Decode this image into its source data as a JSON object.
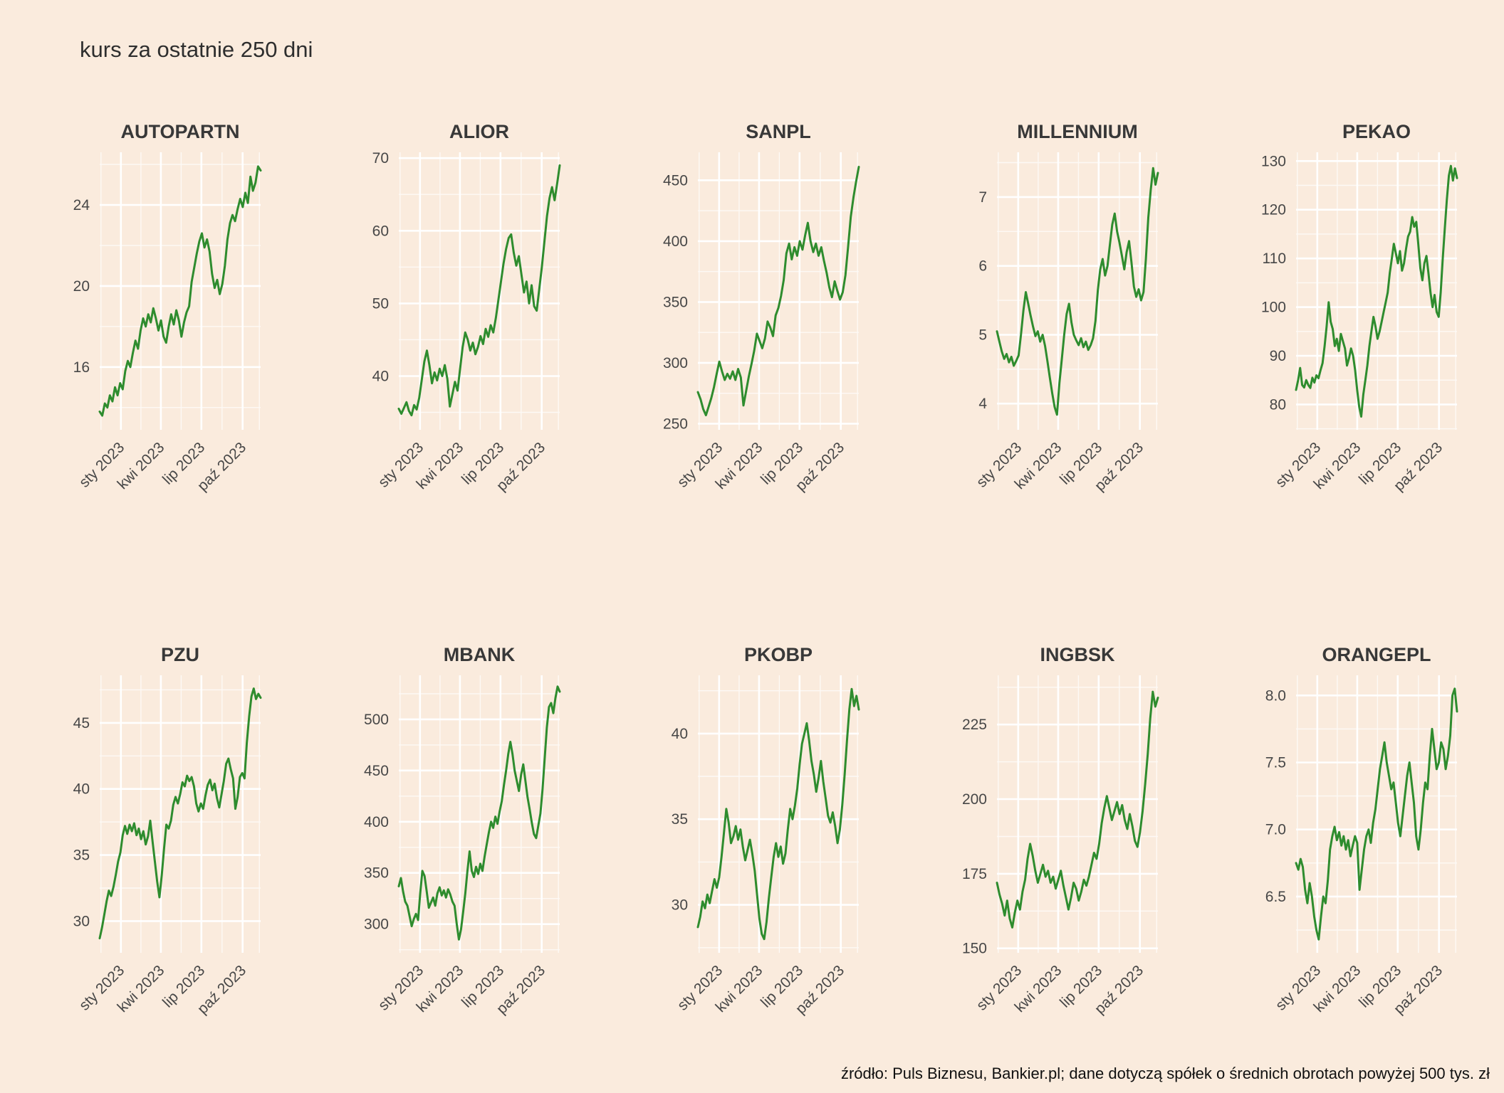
{
  "page": {
    "title": "kurs za ostatnie 250 dni",
    "footer": "źródło: Puls Biznesu, Bankier.pl; dane dotyczą spółek o średnich obrotach powyżej 500 tys. zł",
    "background_color": "#faebdd",
    "line_color": "#2e8c2e",
    "grid_color": "#ffffff",
    "tick_label_color": "#474747",
    "panel_title_color": "#383838"
  },
  "chart_data": [
    {
      "type": "line",
      "title": "AUTOPARTN",
      "x_tick_labels": [
        "sty 2023",
        "kwi 2023",
        "lip 2023",
        "paź 2023"
      ],
      "x_tick_pos": [
        0.132,
        0.38,
        0.632,
        0.888
      ],
      "y_ticks": [
        16,
        20,
        24
      ],
      "y_tick_labels": [
        "16",
        "20",
        "24"
      ],
      "y_range": [
        12.9,
        26.6
      ],
      "values": [
        13.8,
        13.6,
        14.2,
        14.0,
        14.6,
        14.3,
        15.0,
        14.6,
        15.2,
        14.9,
        15.8,
        16.3,
        16.0,
        16.7,
        17.3,
        16.9,
        17.8,
        18.4,
        18.0,
        18.6,
        18.2,
        18.9,
        18.4,
        17.8,
        18.3,
        17.5,
        17.2,
        18.0,
        18.6,
        18.1,
        18.8,
        18.3,
        17.5,
        18.2,
        18.7,
        19.0,
        20.2,
        20.9,
        21.6,
        22.2,
        22.6,
        21.9,
        22.3,
        21.7,
        20.6,
        19.9,
        20.3,
        19.6,
        20.1,
        21.0,
        22.3,
        23.1,
        23.5,
        23.2,
        23.8,
        24.3,
        23.9,
        24.6,
        24.1,
        25.4,
        24.7,
        25.1,
        25.9,
        25.7
      ]
    },
    {
      "type": "line",
      "title": "ALIOR",
      "x_tick_labels": [
        "sty 2023",
        "kwi 2023",
        "lip 2023",
        "paź 2023"
      ],
      "x_tick_pos": [
        0.132,
        0.38,
        0.632,
        0.888
      ],
      "y_ticks": [
        40,
        50,
        60,
        70
      ],
      "y_tick_labels": [
        "40",
        "50",
        "60",
        "70"
      ],
      "y_range": [
        32.6,
        70.8
      ],
      "values": [
        35.5,
        34.8,
        35.6,
        36.4,
        35.2,
        34.6,
        36.0,
        35.4,
        37.0,
        39.5,
        42.0,
        43.5,
        41.5,
        39.0,
        40.5,
        39.4,
        41.0,
        40.0,
        41.5,
        39.6,
        35.8,
        37.5,
        39.2,
        38.0,
        41.0,
        44.0,
        46.0,
        45.0,
        43.5,
        44.6,
        43.0,
        44.0,
        45.5,
        44.4,
        46.5,
        45.4,
        47.0,
        46.0,
        48.0,
        50.5,
        53.0,
        55.5,
        57.5,
        59.0,
        59.5,
        57.0,
        55.2,
        56.5,
        54.0,
        51.5,
        53.0,
        50.0,
        52.5,
        49.6,
        49.0,
        52.0,
        55.0,
        58.5,
        62.0,
        64.5,
        66.0,
        64.2,
        66.5,
        69.0
      ]
    },
    {
      "type": "line",
      "title": "SANPL",
      "x_tick_labels": [
        "sty 2023",
        "kwi 2023",
        "lip 2023",
        "paź 2023"
      ],
      "x_tick_pos": [
        0.132,
        0.38,
        0.632,
        0.888
      ],
      "y_ticks": [
        250,
        300,
        350,
        400,
        450
      ],
      "y_tick_labels": [
        "250",
        "300",
        "350",
        "400",
        "450"
      ],
      "y_range": [
        245,
        473
      ],
      "values": [
        276,
        270,
        262,
        257,
        264,
        271,
        280,
        291,
        301,
        293,
        286,
        291,
        287,
        293,
        286,
        295,
        288,
        265,
        277,
        289,
        299,
        310,
        324,
        318,
        312,
        320,
        334,
        329,
        322,
        339,
        345,
        355,
        368,
        390,
        398,
        385,
        395,
        388,
        400,
        393,
        405,
        415,
        400,
        391,
        398,
        388,
        395,
        384,
        374,
        362,
        354,
        367,
        359,
        352,
        358,
        372,
        395,
        420,
        436,
        449,
        461
      ]
    },
    {
      "type": "line",
      "title": "MILLENNIUM",
      "x_tick_labels": [
        "sty 2023",
        "kwi 2023",
        "lip 2023",
        "paź 2023"
      ],
      "x_tick_pos": [
        0.132,
        0.38,
        0.632,
        0.888
      ],
      "y_ticks": [
        4,
        5,
        6,
        7
      ],
      "y_tick_labels": [
        "4",
        "5",
        "6",
        "7"
      ],
      "y_range": [
        3.62,
        7.65
      ],
      "values": [
        5.05,
        4.9,
        4.76,
        4.65,
        4.72,
        4.6,
        4.68,
        4.55,
        4.62,
        4.7,
        5.0,
        5.35,
        5.62,
        5.45,
        5.28,
        5.12,
        4.98,
        5.05,
        4.9,
        5.0,
        4.84,
        4.62,
        4.38,
        4.15,
        3.95,
        3.84,
        4.3,
        4.65,
        5.0,
        5.3,
        5.45,
        5.18,
        5.0,
        4.92,
        4.85,
        4.95,
        4.82,
        4.9,
        4.78,
        4.85,
        4.95,
        5.2,
        5.65,
        5.95,
        6.1,
        5.86,
        6.0,
        6.3,
        6.6,
        6.76,
        6.5,
        6.34,
        6.15,
        5.95,
        6.2,
        6.36,
        6.05,
        5.7,
        5.55,
        5.66,
        5.5,
        5.62,
        6.1,
        6.7,
        7.1,
        7.42,
        7.18,
        7.35
      ]
    },
    {
      "type": "line",
      "title": "PEKAO",
      "x_tick_labels": [
        "sty 2023",
        "kwi 2023",
        "lip 2023",
        "paź 2023"
      ],
      "x_tick_pos": [
        0.132,
        0.38,
        0.632,
        0.888
      ],
      "y_ticks": [
        80,
        90,
        100,
        110,
        120,
        130
      ],
      "y_tick_labels": [
        "80",
        "90",
        "100",
        "110",
        "120",
        "130"
      ],
      "y_range": [
        74.8,
        131.8
      ],
      "values": [
        83,
        85,
        87.5,
        84,
        83.5,
        85,
        84,
        83.4,
        85.5,
        84.5,
        86,
        85.4,
        87,
        88.5,
        92,
        96,
        101,
        97,
        95.5,
        92,
        93.5,
        91,
        94.5,
        93,
        91.5,
        88,
        89.5,
        91.5,
        90,
        87,
        83,
        79.5,
        77.5,
        82,
        85,
        88,
        92,
        95,
        98,
        96,
        93.5,
        95,
        97,
        99,
        101,
        103,
        107,
        110,
        113,
        111,
        109,
        111.5,
        107.5,
        109,
        112,
        114.5,
        115.5,
        118.5,
        116.5,
        117.5,
        113,
        108,
        105.5,
        109,
        110.5,
        107,
        103,
        100,
        102.5,
        99,
        98,
        103,
        110,
        116,
        122,
        127,
        129,
        126,
        128.5,
        126.5
      ]
    },
    {
      "type": "line",
      "title": "PZU",
      "x_tick_labels": [
        "sty 2023",
        "kwi 2023",
        "lip 2023",
        "paź 2023"
      ],
      "x_tick_pos": [
        0.132,
        0.38,
        0.632,
        0.888
      ],
      "y_ticks": [
        30,
        35,
        40,
        45
      ],
      "y_tick_labels": [
        "30",
        "35",
        "40",
        "45"
      ],
      "y_range": [
        27.6,
        48.6
      ],
      "values": [
        28.7,
        29.5,
        30.5,
        31.5,
        32.3,
        31.9,
        32.6,
        33.5,
        34.5,
        35.2,
        36.5,
        37.2,
        36.6,
        37.3,
        36.8,
        37.4,
        36.5,
        37.0,
        36.2,
        36.8,
        35.8,
        36.4,
        37.6,
        36.0,
        34.5,
        33.0,
        31.8,
        33.5,
        35.5,
        37.3,
        37.0,
        37.6,
        38.8,
        39.4,
        38.9,
        39.6,
        40.5,
        40.2,
        41.0,
        40.6,
        40.9,
        40.2,
        38.9,
        38.3,
        38.9,
        38.5,
        39.5,
        40.3,
        40.7,
        39.9,
        40.4,
        39.3,
        38.6,
        39.6,
        40.6,
        41.9,
        42.3,
        41.5,
        40.8,
        38.5,
        39.4,
        40.9,
        41.2,
        40.8,
        43.5,
        45.5,
        47.0,
        47.6,
        46.8,
        47.2,
        46.9
      ]
    },
    {
      "type": "line",
      "title": "MBANK",
      "x_tick_labels": [
        "sty 2023",
        "kwi 2023",
        "lip 2023",
        "paź 2023"
      ],
      "x_tick_pos": [
        0.132,
        0.38,
        0.632,
        0.888
      ],
      "y_ticks": [
        300,
        350,
        400,
        450,
        500
      ],
      "y_tick_labels": [
        "300",
        "350",
        "400",
        "450",
        "500"
      ],
      "y_range": [
        272,
        543
      ],
      "values": [
        337,
        345,
        332,
        322,
        318,
        308,
        298,
        305,
        310,
        304,
        330,
        352,
        347,
        332,
        316,
        321,
        326,
        318,
        330,
        336,
        328,
        333,
        326,
        334,
        329,
        322,
        318,
        300,
        285,
        295,
        312,
        330,
        352,
        371,
        352,
        346,
        356,
        349,
        359,
        352,
        366,
        378,
        390,
        400,
        394,
        405,
        398,
        410,
        420,
        436,
        450,
        466,
        478,
        466,
        450,
        440,
        430,
        446,
        456,
        440,
        424,
        412,
        399,
        388,
        384,
        396,
        408,
        432,
        462,
        492,
        512,
        516,
        506,
        521,
        532,
        527
      ]
    },
    {
      "type": "line",
      "title": "PKOBP",
      "x_tick_labels": [
        "sty 2023",
        "kwi 2023",
        "lip 2023",
        "paź 2023"
      ],
      "x_tick_pos": [
        0.132,
        0.38,
        0.632,
        0.888
      ],
      "y_ticks": [
        30,
        35,
        40
      ],
      "y_tick_labels": [
        "30",
        "35",
        "40"
      ],
      "y_range": [
        27.2,
        43.4
      ],
      "values": [
        28.7,
        29.3,
        30.2,
        29.8,
        30.6,
        30.1,
        30.8,
        31.5,
        31.0,
        31.6,
        32.8,
        34.2,
        35.6,
        34.8,
        33.6,
        34.0,
        34.6,
        33.8,
        34.4,
        33.4,
        32.6,
        33.2,
        33.8,
        33.0,
        32.0,
        30.6,
        29.2,
        28.3,
        28.0,
        29.0,
        30.4,
        31.6,
        32.8,
        33.6,
        32.8,
        33.4,
        32.4,
        33.0,
        34.4,
        35.6,
        35.0,
        35.8,
        36.8,
        38.2,
        39.4,
        40.0,
        40.6,
        39.6,
        38.4,
        37.6,
        36.6,
        37.4,
        38.4,
        37.2,
        36.2,
        35.2,
        34.8,
        35.4,
        34.6,
        33.6,
        34.4,
        35.8,
        37.6,
        39.6,
        41.4,
        42.6,
        41.6,
        42.2,
        41.4
      ]
    },
    {
      "type": "line",
      "title": "INGBSK",
      "x_tick_labels": [
        "sty 2023",
        "kwi 2023",
        "lip 2023",
        "paź 2023"
      ],
      "x_tick_pos": [
        0.132,
        0.38,
        0.632,
        0.888
      ],
      "y_ticks": [
        150,
        175,
        200,
        225
      ],
      "y_tick_labels": [
        "150",
        "175",
        "200",
        "225"
      ],
      "y_range": [
        148.5,
        241.5
      ],
      "values": [
        172,
        168,
        165,
        161,
        166,
        160,
        157,
        162,
        166,
        163,
        169,
        173,
        180,
        185,
        181,
        176,
        172,
        175,
        178,
        174,
        176,
        172,
        174,
        170,
        173,
        176,
        171,
        167,
        163,
        167,
        172,
        170,
        166,
        169,
        173,
        171,
        174,
        178,
        182,
        180,
        185,
        192,
        197,
        201,
        197,
        193,
        196,
        199,
        195,
        198,
        193,
        190,
        195,
        191,
        186,
        184,
        189,
        196,
        205,
        215,
        227,
        236,
        231,
        234
      ]
    },
    {
      "type": "line",
      "title": "ORANGEPL",
      "x_tick_labels": [
        "sty 2023",
        "kwi 2023",
        "lip 2023",
        "paź 2023"
      ],
      "x_tick_pos": [
        0.132,
        0.38,
        0.632,
        0.888
      ],
      "y_ticks": [
        6.5,
        7.0,
        7.5,
        8.0
      ],
      "y_tick_labels": [
        "6.5",
        "7.0",
        "7.5",
        "8.0"
      ],
      "y_range": [
        6.08,
        8.15
      ],
      "values": [
        6.75,
        6.7,
        6.78,
        6.72,
        6.55,
        6.45,
        6.6,
        6.5,
        6.35,
        6.25,
        6.18,
        6.35,
        6.5,
        6.45,
        6.62,
        6.85,
        6.95,
        7.02,
        6.92,
        6.98,
        6.88,
        6.95,
        6.85,
        6.92,
        6.8,
        6.88,
        6.95,
        6.9,
        6.55,
        6.7,
        6.85,
        6.95,
        7.0,
        6.9,
        7.05,
        7.15,
        7.3,
        7.45,
        7.55,
        7.65,
        7.5,
        7.4,
        7.3,
        7.35,
        7.2,
        7.05,
        6.95,
        7.1,
        7.25,
        7.4,
        7.5,
        7.35,
        7.2,
        6.95,
        6.85,
        7.0,
        7.2,
        7.35,
        7.3,
        7.55,
        7.75,
        7.6,
        7.45,
        7.5,
        7.65,
        7.6,
        7.45,
        7.55,
        7.7,
        8.0,
        8.05,
        7.88
      ]
    }
  ]
}
